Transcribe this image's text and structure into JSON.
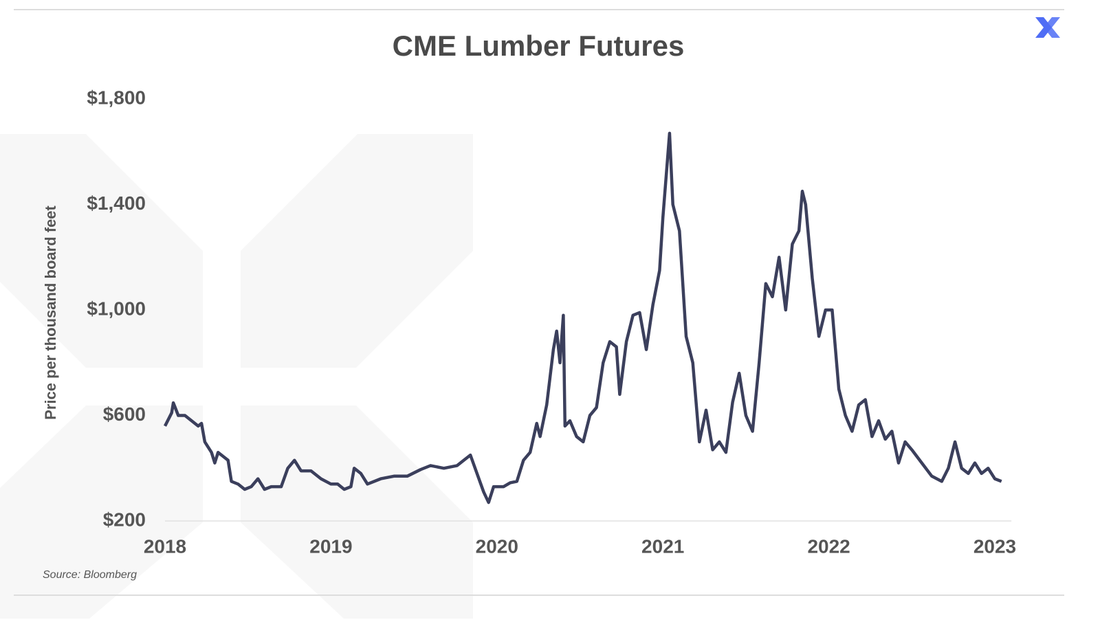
{
  "chart_data": {
    "type": "line",
    "title": "CME Lumber Futures",
    "y_label": "Price per thousand board feet",
    "source": "Source: Bloomberg",
    "xlim": [
      2018,
      2023.1
    ],
    "xticks": [
      2018,
      2019,
      2020,
      2021,
      2022,
      2023
    ],
    "ylim": [
      200,
      1800
    ],
    "yticks": [
      {
        "value": 200,
        "label": "$200"
      },
      {
        "value": 600,
        "label": "$600"
      },
      {
        "value": 1000,
        "label": "$1,000"
      },
      {
        "value": 1400,
        "label": "$1,400"
      },
      {
        "value": 1800,
        "label": "$1,800"
      }
    ],
    "grid": false,
    "series": [
      {
        "color": "#3b3f5c",
        "x": [
          2018.0,
          2018.04,
          2018.05,
          2018.08,
          2018.12,
          2018.2,
          2018.22,
          2018.24,
          2018.28,
          2018.3,
          2018.32,
          2018.36,
          2018.38,
          2018.4,
          2018.44,
          2018.48,
          2018.52,
          2018.56,
          2018.6,
          2018.64,
          2018.7,
          2018.74,
          2018.78,
          2018.82,
          2018.88,
          2018.94,
          2019.0,
          2019.04,
          2019.08,
          2019.12,
          2019.14,
          2019.18,
          2019.22,
          2019.3,
          2019.38,
          2019.46,
          2019.54,
          2019.6,
          2019.68,
          2019.76,
          2019.8,
          2019.84,
          2019.88,
          2019.92,
          2019.95,
          2019.98,
          2020.04,
          2020.08,
          2020.12,
          2020.16,
          2020.2,
          2020.24,
          2020.26,
          2020.3,
          2020.34,
          2020.36,
          2020.38,
          2020.4,
          2020.41,
          2020.44,
          2020.48,
          2020.52,
          2020.56,
          2020.6,
          2020.64,
          2020.68,
          2020.72,
          2020.74,
          2020.78,
          2020.82,
          2020.86,
          2020.9,
          2020.94,
          2020.98,
          2021.0,
          2021.04,
          2021.06,
          2021.1,
          2021.14,
          2021.18,
          2021.22,
          2021.26,
          2021.3,
          2021.34,
          2021.38,
          2021.42,
          2021.46,
          2021.5,
          2021.54,
          2021.58,
          2021.62,
          2021.66,
          2021.7,
          2021.74,
          2021.78,
          2021.82,
          2021.84,
          2021.86,
          2021.9,
          2021.94,
          2021.98,
          2022.02,
          2022.06,
          2022.1,
          2022.14,
          2022.18,
          2022.22,
          2022.26,
          2022.3,
          2022.34,
          2022.38,
          2022.42,
          2022.46,
          2022.5,
          2022.56,
          2022.62,
          2022.68,
          2022.72,
          2022.76,
          2022.8,
          2022.84,
          2022.88,
          2022.92,
          2022.96,
          2023.0,
          2023.04
        ],
        "values": [
          560,
          610,
          648,
          600,
          600,
          560,
          570,
          500,
          460,
          420,
          460,
          440,
          430,
          350,
          340,
          320,
          330,
          360,
          320,
          330,
          330,
          400,
          430,
          390,
          390,
          360,
          340,
          340,
          320,
          330,
          400,
          380,
          340,
          360,
          370,
          370,
          395,
          410,
          400,
          410,
          430,
          450,
          380,
          310,
          270,
          330,
          330,
          345,
          350,
          430,
          460,
          570,
          520,
          640,
          850,
          920,
          800,
          980,
          560,
          580,
          520,
          500,
          600,
          630,
          800,
          880,
          860,
          680,
          880,
          980,
          990,
          850,
          1020,
          1150,
          1350,
          1670,
          1400,
          1300,
          900,
          800,
          500,
          620,
          470,
          500,
          460,
          650,
          760,
          600,
          540,
          800,
          1100,
          1050,
          1200,
          1000,
          1250,
          1300,
          1450,
          1400,
          1120,
          900,
          1000,
          1000,
          700,
          600,
          540,
          640,
          660,
          520,
          580,
          510,
          540,
          420,
          500,
          470,
          420,
          370,
          350,
          400,
          500,
          400,
          380,
          420,
          380,
          400,
          360,
          350
        ]
      }
    ]
  }
}
